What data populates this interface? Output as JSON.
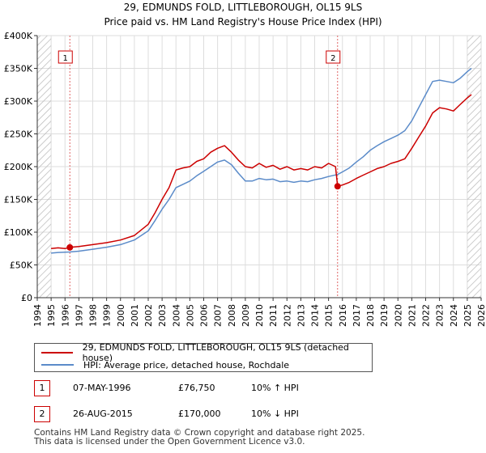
{
  "chart_data": {
    "type": "line",
    "title": "29, EDMUNDS FOLD, LITTLEBOROUGH, OL15 9LS",
    "subtitle": "Price paid vs. HM Land Registry's House Price Index (HPI)",
    "xlim": [
      1994,
      2026
    ],
    "ylim": [
      0,
      400000
    ],
    "x_ticks": [
      "1994",
      "1995",
      "1996",
      "1997",
      "1998",
      "1999",
      "2000",
      "2001",
      "2002",
      "2003",
      "2004",
      "2005",
      "2006",
      "2007",
      "2008",
      "2009",
      "2010",
      "2011",
      "2012",
      "2013",
      "2014",
      "2015",
      "2016",
      "2017",
      "2018",
      "2019",
      "2020",
      "2021",
      "2022",
      "2023",
      "2024",
      "2025",
      "2026"
    ],
    "y_ticks": [
      {
        "value": 0,
        "label": "£0"
      },
      {
        "value": 50000,
        "label": "£50K"
      },
      {
        "value": 100000,
        "label": "£100K"
      },
      {
        "value": 150000,
        "label": "£150K"
      },
      {
        "value": 200000,
        "label": "£200K"
      },
      {
        "value": 250000,
        "label": "£250K"
      },
      {
        "value": 300000,
        "label": "£300K"
      },
      {
        "value": 350000,
        "label": "£350K"
      },
      {
        "value": 400000,
        "label": "£400K"
      }
    ],
    "grid": true,
    "hatched_before": 1995.0,
    "hatched_after": 2025.0,
    "series": [
      {
        "name": "29, EDMUNDS FOLD, LITTLEBOROUGH, OL15 9LS (detached house)",
        "color": "#cc0000",
        "points": [
          [
            1995.0,
            75000
          ],
          [
            1995.5,
            76000
          ],
          [
            1996.0,
            75000
          ],
          [
            1996.35,
            76750
          ],
          [
            1997.0,
            78000
          ],
          [
            1998.0,
            81000
          ],
          [
            1999.0,
            84000
          ],
          [
            2000.0,
            88000
          ],
          [
            2001.0,
            95000
          ],
          [
            2002.0,
            112000
          ],
          [
            2002.5,
            130000
          ],
          [
            2003.0,
            150000
          ],
          [
            2003.5,
            168000
          ],
          [
            2004.0,
            195000
          ],
          [
            2004.5,
            198000
          ],
          [
            2005.0,
            200000
          ],
          [
            2005.5,
            208000
          ],
          [
            2006.0,
            212000
          ],
          [
            2006.5,
            222000
          ],
          [
            2007.0,
            228000
          ],
          [
            2007.5,
            232000
          ],
          [
            2008.0,
            222000
          ],
          [
            2008.5,
            210000
          ],
          [
            2009.0,
            200000
          ],
          [
            2009.5,
            198000
          ],
          [
            2010.0,
            205000
          ],
          [
            2010.5,
            199000
          ],
          [
            2011.0,
            202000
          ],
          [
            2011.5,
            196000
          ],
          [
            2012.0,
            200000
          ],
          [
            2012.5,
            195000
          ],
          [
            2013.0,
            197000
          ],
          [
            2013.5,
            195000
          ],
          [
            2014.0,
            200000
          ],
          [
            2014.5,
            198000
          ],
          [
            2015.0,
            205000
          ],
          [
            2015.5,
            200000
          ],
          [
            2015.65,
            170000
          ],
          [
            2016.0,
            172000
          ],
          [
            2016.5,
            176000
          ],
          [
            2017.0,
            182000
          ],
          [
            2017.5,
            187000
          ],
          [
            2018.0,
            192000
          ],
          [
            2018.5,
            197000
          ],
          [
            2019.0,
            200000
          ],
          [
            2019.5,
            205000
          ],
          [
            2020.0,
            208000
          ],
          [
            2020.5,
            212000
          ],
          [
            2021.0,
            228000
          ],
          [
            2021.5,
            245000
          ],
          [
            2022.0,
            262000
          ],
          [
            2022.5,
            282000
          ],
          [
            2023.0,
            290000
          ],
          [
            2023.5,
            288000
          ],
          [
            2024.0,
            285000
          ],
          [
            2024.5,
            295000
          ],
          [
            2025.0,
            305000
          ],
          [
            2025.3,
            310000
          ]
        ]
      },
      {
        "name": "HPI: Average price, detached house, Rochdale",
        "color": "#5b8bc9",
        "points": [
          [
            1995.0,
            68000
          ],
          [
            1995.5,
            69000
          ],
          [
            1996.0,
            69500
          ],
          [
            1996.35,
            69800
          ],
          [
            1997.0,
            71000
          ],
          [
            1998.0,
            74000
          ],
          [
            1999.0,
            77000
          ],
          [
            2000.0,
            81000
          ],
          [
            2001.0,
            88000
          ],
          [
            2002.0,
            102000
          ],
          [
            2002.5,
            118000
          ],
          [
            2003.0,
            135000
          ],
          [
            2003.5,
            150000
          ],
          [
            2004.0,
            168000
          ],
          [
            2004.5,
            173000
          ],
          [
            2005.0,
            178000
          ],
          [
            2005.5,
            186000
          ],
          [
            2006.0,
            193000
          ],
          [
            2006.5,
            200000
          ],
          [
            2007.0,
            207000
          ],
          [
            2007.5,
            210000
          ],
          [
            2008.0,
            203000
          ],
          [
            2008.5,
            190000
          ],
          [
            2009.0,
            178000
          ],
          [
            2009.5,
            178000
          ],
          [
            2010.0,
            182000
          ],
          [
            2010.5,
            180000
          ],
          [
            2011.0,
            181000
          ],
          [
            2011.5,
            177000
          ],
          [
            2012.0,
            178000
          ],
          [
            2012.5,
            176000
          ],
          [
            2013.0,
            178000
          ],
          [
            2013.5,
            177000
          ],
          [
            2014.0,
            180000
          ],
          [
            2014.5,
            182000
          ],
          [
            2015.0,
            185000
          ],
          [
            2015.65,
            188000
          ],
          [
            2016.0,
            192000
          ],
          [
            2016.5,
            198000
          ],
          [
            2017.0,
            207000
          ],
          [
            2017.5,
            215000
          ],
          [
            2018.0,
            225000
          ],
          [
            2018.5,
            232000
          ],
          [
            2019.0,
            238000
          ],
          [
            2019.5,
            243000
          ],
          [
            2020.0,
            248000
          ],
          [
            2020.5,
            255000
          ],
          [
            2021.0,
            270000
          ],
          [
            2021.5,
            290000
          ],
          [
            2022.0,
            310000
          ],
          [
            2022.5,
            330000
          ],
          [
            2023.0,
            332000
          ],
          [
            2023.5,
            330000
          ],
          [
            2024.0,
            328000
          ],
          [
            2024.5,
            335000
          ],
          [
            2025.0,
            345000
          ],
          [
            2025.3,
            350000
          ]
        ]
      }
    ],
    "sales": [
      {
        "marker": "1",
        "x": 1996.35,
        "price": 76750,
        "date": "07-MAY-1996",
        "price_label": "£76,750",
        "hpi": "10% ↑ HPI"
      },
      {
        "marker": "2",
        "x": 2015.65,
        "price": 170000,
        "date": "26-AUG-2015",
        "price_label": "£170,000",
        "hpi": "10% ↓ HPI"
      }
    ]
  },
  "legend": {
    "property_label": "29, EDMUNDS FOLD, LITTLEBOROUGH, OL15 9LS (detached house)",
    "hpi_label": "HPI: Average price, detached house, Rochdale"
  },
  "footer": {
    "line1": "Contains HM Land Registry data © Crown copyright and database right 2025.",
    "line2": "This data is licensed under the Open Government Licence v3.0."
  }
}
